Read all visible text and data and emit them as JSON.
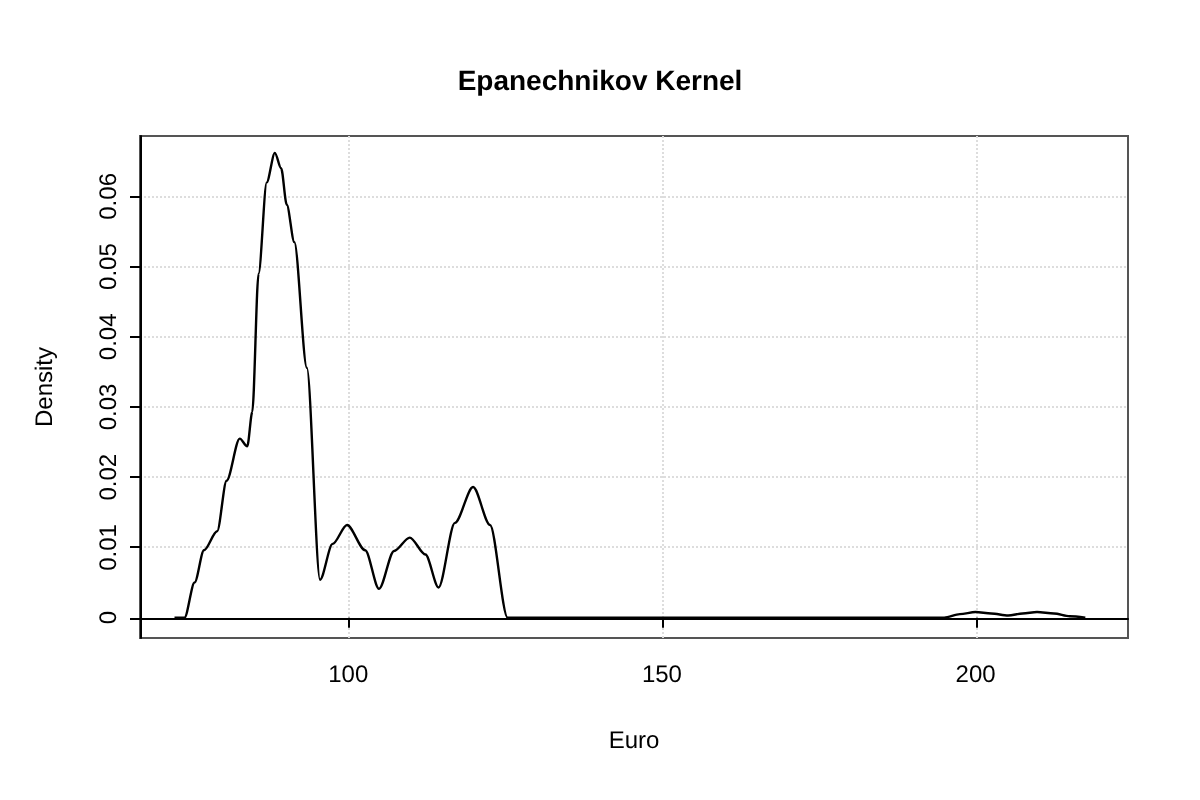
{
  "chart_data": {
    "type": "line",
    "title": "Epanechnikov Kernel",
    "xlabel": "Euro",
    "ylabel": "Density",
    "x": [
      72.3,
      73.9,
      75.5,
      77.0,
      79.1,
      80.6,
      82.7,
      83.9,
      84.7,
      85.7,
      87.0,
      88.3,
      89.3,
      90.2,
      91.4,
      93.4,
      95.5,
      97.5,
      99.8,
      102.7,
      104.9,
      107.3,
      109.8,
      112.3,
      114.4,
      117.0,
      119.9,
      122.6,
      125.4,
      150,
      195,
      197.5,
      200,
      202.5,
      205.2,
      207.5,
      209.8,
      212.5,
      215,
      217.5
    ],
    "series": [
      {
        "color": "#000000",
        "values": [
          0,
          0,
          0.005,
          0.0096,
          0.0123,
          0.0195,
          0.0255,
          0.0244,
          0.0293,
          0.049,
          0.062,
          0.0662,
          0.064,
          0.0588,
          0.0535,
          0.0356,
          0.0054,
          0.0105,
          0.0132,
          0.0096,
          0.0041,
          0.0095,
          0.0114,
          0.009,
          0.0043,
          0.0135,
          0.0186,
          0.0132,
          0,
          0,
          0,
          0.0005,
          0.0008,
          0.0006,
          0.0003,
          0.0006,
          0.0008,
          0.0006,
          0.0002,
          0
        ]
      }
    ],
    "xlim": [
      66.8,
      224.3
    ],
    "ylim": [
      -0.0029,
      0.0686
    ],
    "xticks": [
      100,
      150,
      200
    ],
    "yticks": [
      0,
      0.01,
      0.02,
      0.03,
      0.04,
      0.05,
      0.06
    ],
    "grid": true,
    "marker": "none",
    "line_style": "solid"
  }
}
